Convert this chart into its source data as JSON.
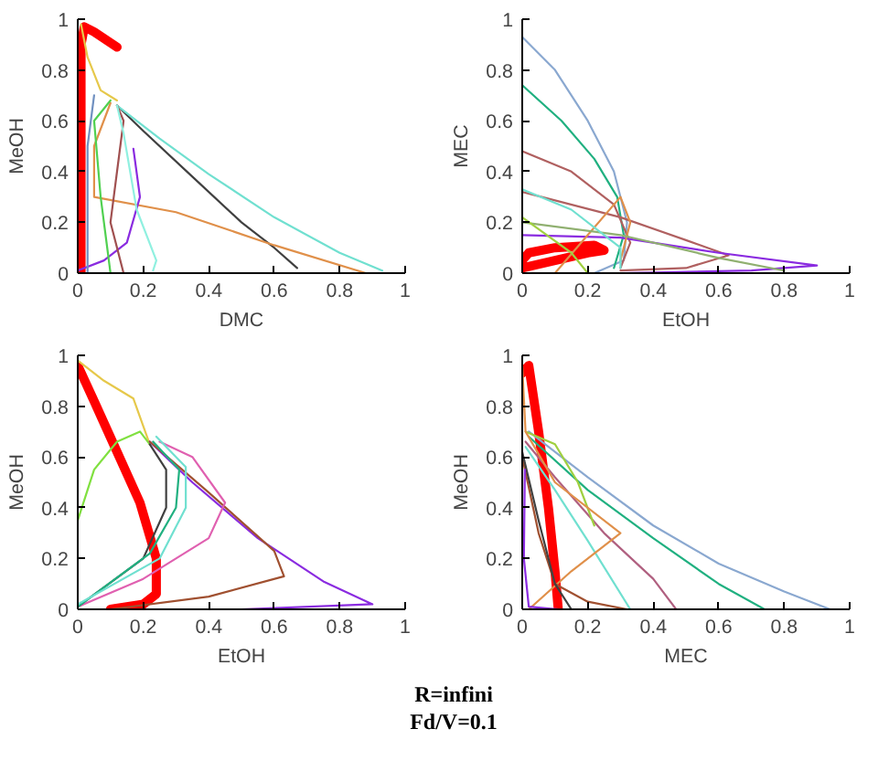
{
  "chart_data": [
    {
      "type": "line",
      "xlabel": "DMC",
      "ylabel": "MeOH",
      "xlim": [
        0,
        1
      ],
      "ylim": [
        0,
        1
      ],
      "xticks": [
        0,
        0.2,
        0.4,
        0.6,
        0.8,
        1
      ],
      "yticks": [
        0,
        0.2,
        0.4,
        0.6,
        0.8,
        1
      ],
      "series": [
        {
          "color": "#ff0000",
          "x": [
            0.01,
            0.01,
            0.01,
            0.02,
            0.05,
            0.12
          ],
          "values": [
            0,
            0.5,
            0.9,
            0.97,
            0.95,
            0.89
          ]
        },
        {
          "color": "#e6c84a",
          "x": [
            0.01,
            0.03,
            0.07,
            0.12
          ],
          "values": [
            0.98,
            0.85,
            0.72,
            0.68
          ]
        },
        {
          "color": "#404040",
          "x": [
            0.12,
            0.2,
            0.35,
            0.5,
            0.6,
            0.67
          ],
          "values": [
            0.66,
            0.56,
            0.38,
            0.2,
            0.1,
            0.02
          ]
        },
        {
          "color": "#70e0d0",
          "x": [
            0.12,
            0.25,
            0.4,
            0.6,
            0.8,
            0.93
          ],
          "values": [
            0.66,
            0.53,
            0.39,
            0.22,
            0.08,
            0.01
          ]
        },
        {
          "color": "#e0904a",
          "x": [
            0.1,
            0.05,
            0.05,
            0.3,
            0.6,
            0.88
          ],
          "values": [
            0.67,
            0.5,
            0.3,
            0.24,
            0.11,
            0.0
          ]
        },
        {
          "color": "#8a2be0",
          "x": [
            0.0,
            0.08,
            0.15,
            0.19,
            0.17
          ],
          "values": [
            0.01,
            0.05,
            0.12,
            0.3,
            0.49
          ]
        },
        {
          "color": "#50d050",
          "x": [
            0.1,
            0.05,
            0.07,
            0.1
          ],
          "values": [
            0.68,
            0.6,
            0.3,
            0.0
          ]
        },
        {
          "color": "#a05050",
          "x": [
            0.12,
            0.14,
            0.1,
            0.14
          ],
          "values": [
            0.66,
            0.6,
            0.2,
            0.0
          ]
        },
        {
          "color": "#90f0e0",
          "x": [
            0.12,
            0.14,
            0.18,
            0.24,
            0.23
          ],
          "values": [
            0.66,
            0.55,
            0.25,
            0.05,
            0.01
          ]
        },
        {
          "color": "#7090c0",
          "x": [
            0.05,
            0.03,
            0.03
          ],
          "values": [
            0.7,
            0.5,
            0.0
          ]
        }
      ]
    },
    {
      "type": "line",
      "xlabel": "EtOH",
      "ylabel": "MEC",
      "xlim": [
        0,
        1
      ],
      "ylim": [
        0,
        1
      ],
      "xticks": [
        0,
        0.2,
        0.4,
        0.6,
        0.8,
        1
      ],
      "yticks": [
        0,
        0.2,
        0.4,
        0.6,
        0.8,
        1
      ],
      "series": [
        {
          "color": "#ff0000",
          "x": [
            0,
            0.1,
            0.2,
            0.25,
            0.22,
            0.1,
            0.02,
            0
          ],
          "values": [
            0.02,
            0.05,
            0.08,
            0.09,
            0.11,
            0.1,
            0.08,
            0.05
          ]
        },
        {
          "color": "#8aa8d0",
          "x": [
            0,
            0.1,
            0.2,
            0.28,
            0.32,
            0.31,
            0.22
          ],
          "values": [
            0.93,
            0.8,
            0.6,
            0.4,
            0.2,
            0.05,
            0
          ]
        },
        {
          "color": "#20b080",
          "x": [
            0,
            0.12,
            0.22,
            0.29,
            0.31,
            0.28
          ],
          "values": [
            0.74,
            0.6,
            0.45,
            0.3,
            0.15,
            0.02
          ]
        },
        {
          "color": "#b06060",
          "x": [
            0,
            0.15,
            0.28,
            0.33,
            0.3
          ],
          "values": [
            0.48,
            0.4,
            0.27,
            0.12,
            0.02
          ]
        },
        {
          "color": "#b06060",
          "x": [
            0,
            0.3,
            0.5,
            0.63,
            0.5,
            0.3
          ],
          "values": [
            0.32,
            0.22,
            0.13,
            0.07,
            0.02,
            0.01
          ]
        },
        {
          "color": "#8a2be0",
          "x": [
            0,
            0.3,
            0.6,
            0.9,
            0.7,
            0.3
          ],
          "values": [
            0.15,
            0.14,
            0.08,
            0.03,
            0.01,
            0.0
          ]
        },
        {
          "color": "#e0904a",
          "x": [
            0.1,
            0.2,
            0.3,
            0.33,
            0.3
          ],
          "values": [
            0.0,
            0.15,
            0.3,
            0.2,
            0.05
          ]
        },
        {
          "color": "#90b070",
          "x": [
            0,
            0.3,
            0.6,
            0.8
          ],
          "values": [
            0.2,
            0.15,
            0.06,
            0.01
          ]
        },
        {
          "color": "#70e0d0",
          "x": [
            0,
            0.15,
            0.3,
            0.3
          ],
          "values": [
            0.33,
            0.25,
            0.1,
            0.02
          ]
        },
        {
          "color": "#a0d040",
          "x": [
            0,
            0.15,
            0.2
          ],
          "values": [
            0.22,
            0.08,
            0.0
          ]
        }
      ]
    },
    {
      "type": "line",
      "xlabel": "EtOH",
      "ylabel": "MeOH",
      "xlim": [
        0,
        1
      ],
      "ylim": [
        0,
        1
      ],
      "xticks": [
        0,
        0.2,
        0.4,
        0.6,
        0.8,
        1
      ],
      "yticks": [
        0,
        0.2,
        0.4,
        0.6,
        0.8,
        1
      ],
      "annotations": [
        "R=infini",
        "Fd/V=0.1"
      ],
      "series": [
        {
          "color": "#ff0000",
          "x": [
            0,
            0.05,
            0.12,
            0.19,
            0.24,
            0.24,
            0.2,
            0.1
          ],
          "values": [
            0.96,
            0.82,
            0.62,
            0.42,
            0.2,
            0.06,
            0.02,
            0.0
          ]
        },
        {
          "color": "#e6c84a",
          "x": [
            0,
            0.08,
            0.17,
            0.22
          ],
          "values": [
            0.98,
            0.9,
            0.83,
            0.65
          ]
        },
        {
          "color": "#80e040",
          "x": [
            0,
            0.05,
            0.12,
            0.19,
            0.22
          ],
          "values": [
            0.35,
            0.55,
            0.66,
            0.7,
            0.65
          ]
        },
        {
          "color": "#8a2be0",
          "x": [
            0.22,
            0.35,
            0.55,
            0.75,
            0.9,
            0.5,
            0
          ],
          "values": [
            0.66,
            0.5,
            0.28,
            0.11,
            0.02,
            0.0,
            0.0
          ]
        },
        {
          "color": "#a05030",
          "x": [
            0.22,
            0.4,
            0.6,
            0.63,
            0.4,
            0.1
          ],
          "values": [
            0.66,
            0.46,
            0.23,
            0.13,
            0.05,
            0.0
          ]
        },
        {
          "color": "#e060b0",
          "x": [
            0.25,
            0.35,
            0.45,
            0.4,
            0.2,
            0
          ],
          "values": [
            0.66,
            0.6,
            0.42,
            0.28,
            0.12,
            0.01
          ]
        },
        {
          "color": "#404040",
          "x": [
            0.22,
            0.27,
            0.27,
            0.2,
            0
          ],
          "values": [
            0.65,
            0.55,
            0.4,
            0.2,
            0.01
          ]
        },
        {
          "color": "#20b080",
          "x": [
            0.23,
            0.31,
            0.3,
            0.22,
            0
          ],
          "values": [
            0.66,
            0.55,
            0.4,
            0.22,
            0.01
          ]
        },
        {
          "color": "#70e0d0",
          "x": [
            0.24,
            0.33,
            0.33,
            0.25,
            0
          ],
          "values": [
            0.68,
            0.56,
            0.4,
            0.2,
            0.02
          ]
        }
      ]
    },
    {
      "type": "line",
      "xlabel": "MEC",
      "ylabel": "MeOH",
      "xlim": [
        0,
        1
      ],
      "ylim": [
        0,
        1
      ],
      "xticks": [
        0,
        0.2,
        0.4,
        0.6,
        0.8,
        1
      ],
      "yticks": [
        0,
        0.2,
        0.4,
        0.6,
        0.8,
        1
      ],
      "series": [
        {
          "color": "#ff0000",
          "x": [
            0,
            0.02,
            0.05,
            0.08,
            0.1,
            0.11
          ],
          "values": [
            0.93,
            0.96,
            0.7,
            0.4,
            0.15,
            0.0
          ]
        },
        {
          "color": "#8aa8d0",
          "x": [
            0.02,
            0.2,
            0.4,
            0.6,
            0.8,
            0.94
          ],
          "values": [
            0.7,
            0.52,
            0.33,
            0.18,
            0.07,
            0.0
          ]
        },
        {
          "color": "#20b080",
          "x": [
            0.02,
            0.2,
            0.4,
            0.6,
            0.74
          ],
          "values": [
            0.68,
            0.47,
            0.28,
            0.1,
            0.0
          ]
        },
        {
          "color": "#b06080",
          "x": [
            0.01,
            0.1,
            0.25,
            0.4,
            0.47
          ],
          "values": [
            0.66,
            0.52,
            0.3,
            0.12,
            0.0
          ]
        },
        {
          "color": "#70e0d0",
          "x": [
            0.01,
            0.1,
            0.2,
            0.33
          ],
          "values": [
            0.64,
            0.47,
            0.27,
            0.0
          ]
        },
        {
          "color": "#a0d040",
          "x": [
            0.01,
            0.1,
            0.17,
            0.22
          ],
          "values": [
            0.7,
            0.65,
            0.5,
            0.33
          ]
        },
        {
          "color": "#e0904a",
          "x": [
            0,
            0.01,
            0.1,
            0.3,
            0.15,
            0.02
          ],
          "values": [
            0.96,
            0.7,
            0.5,
            0.3,
            0.15,
            0.0
          ]
        },
        {
          "color": "#a05030",
          "x": [
            0,
            0.05,
            0.1,
            0.2,
            0.32
          ],
          "values": [
            0.6,
            0.3,
            0.1,
            0.03,
            0.0
          ]
        },
        {
          "color": "#404040",
          "x": [
            0,
            0.05,
            0.1,
            0.15
          ],
          "values": [
            0.62,
            0.35,
            0.1,
            0.0
          ]
        },
        {
          "color": "#8a2be0",
          "x": [
            0.008,
            0.005,
            0.02,
            0.11
          ],
          "values": [
            0.55,
            0.2,
            0.01,
            0.0
          ]
        }
      ]
    }
  ]
}
